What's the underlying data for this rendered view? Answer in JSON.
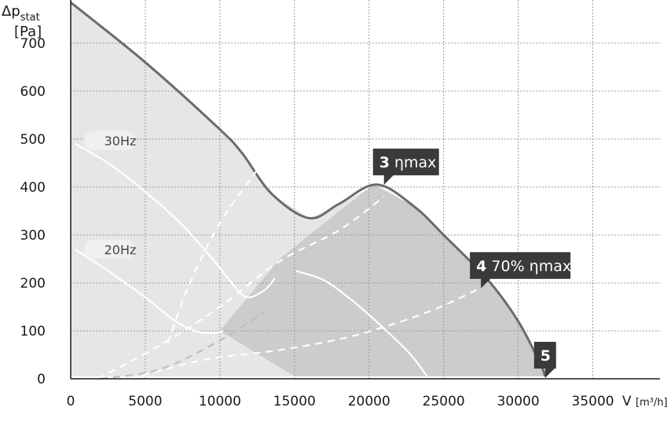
{
  "chart_data": {
    "type": "line",
    "y_axis": {
      "label_main": "Δp",
      "label_sub": "stat",
      "unit": "[Pa]",
      "ticks": [
        0,
        100,
        200,
        300,
        400,
        500,
        600,
        700
      ],
      "range": [
        0,
        790
      ]
    },
    "x_axis": {
      "label_main": "V",
      "label_unit": "[m³/h]",
      "ticks": [
        0,
        5000,
        10000,
        15000,
        20000,
        25000,
        30000,
        35000
      ],
      "range": [
        0,
        39500
      ]
    },
    "grid": true,
    "series": [
      {
        "role": "max_curve",
        "color": "#6b6b6b",
        "points": [
          [
            0,
            785
          ],
          [
            5000,
            660
          ],
          [
            10000,
            520
          ],
          [
            11500,
            470
          ],
          [
            13500,
            385
          ],
          [
            16000,
            335
          ],
          [
            18000,
            365
          ],
          [
            20500,
            405
          ],
          [
            23000,
            360
          ],
          [
            25000,
            300
          ],
          [
            28000,
            205
          ],
          [
            30000,
            120
          ],
          [
            31500,
            30
          ],
          [
            31800,
            5
          ]
        ]
      },
      {
        "name": "30Hz",
        "color": "#ffffff",
        "points": [
          [
            300,
            490
          ],
          [
            2500,
            450
          ],
          [
            5000,
            390
          ],
          [
            7500,
            320
          ],
          [
            9500,
            250
          ],
          [
            10800,
            200
          ],
          [
            11800,
            170
          ],
          [
            13000,
            185
          ],
          [
            13700,
            210
          ]
        ]
      },
      {
        "name": "20Hz",
        "color": "#ffffff",
        "points": [
          [
            300,
            270
          ],
          [
            2500,
            225
          ],
          [
            5000,
            170
          ],
          [
            6800,
            125
          ],
          [
            8300,
            100
          ],
          [
            9600,
            95
          ],
          [
            10200,
            100
          ]
        ]
      },
      {
        "role": "white_solid",
        "color": "#ffffff",
        "points": [
          [
            15100,
            225
          ],
          [
            17000,
            205
          ],
          [
            19000,
            160
          ],
          [
            21000,
            105
          ],
          [
            22800,
            50
          ],
          [
            24000,
            0
          ]
        ]
      },
      {
        "role": "dashed_steep_left",
        "color": "#ffffff",
        "points": [
          [
            6500,
            75
          ],
          [
            8000,
            200
          ],
          [
            10000,
            325
          ],
          [
            12500,
            435
          ]
        ]
      },
      {
        "role": "dashed_mid",
        "color": "#ffffff",
        "points": [
          [
            1800,
            0
          ],
          [
            6000,
            70
          ],
          [
            10000,
            150
          ],
          [
            14000,
            245
          ],
          [
            18000,
            310
          ],
          [
            21000,
            380
          ]
        ]
      },
      {
        "role": "dashed_low",
        "color": "#ffffff",
        "points": [
          [
            4000,
            0
          ],
          [
            9000,
            40
          ],
          [
            14000,
            60
          ],
          [
            19000,
            90
          ],
          [
            24000,
            140
          ],
          [
            27500,
            190
          ]
        ]
      },
      {
        "role": "dashed_floor",
        "color": "#bdbdbd",
        "points": [
          [
            2000,
            0
          ],
          [
            6000,
            20
          ],
          [
            10000,
            80
          ],
          [
            13000,
            140
          ]
        ]
      }
    ],
    "shaded_regions": [
      {
        "role": "operating_region",
        "color": "#e6e6e6",
        "points": [
          [
            0,
            785
          ],
          [
            5000,
            660
          ],
          [
            10000,
            520
          ],
          [
            11500,
            470
          ],
          [
            13500,
            385
          ],
          [
            16000,
            335
          ],
          [
            18000,
            365
          ],
          [
            20500,
            405
          ],
          [
            23000,
            360
          ],
          [
            25000,
            300
          ],
          [
            28000,
            205
          ],
          [
            30000,
            120
          ],
          [
            31500,
            30
          ],
          [
            31800,
            5
          ],
          [
            0,
            5
          ]
        ]
      },
      {
        "role": "efficient_region",
        "color": "#cccccc",
        "points": [
          [
            10000,
            100
          ],
          [
            14000,
            250
          ],
          [
            18000,
            350
          ],
          [
            20300,
            405
          ],
          [
            23000,
            360
          ],
          [
            25000,
            300
          ],
          [
            28000,
            205
          ],
          [
            30000,
            120
          ],
          [
            31500,
            30
          ],
          [
            31800,
            5
          ],
          [
            15000,
            5
          ],
          [
            10000,
            100
          ]
        ]
      }
    ],
    "annotations": [
      {
        "text": "30Hz",
        "x": 1400,
        "y": 497
      },
      {
        "text": "20Hz",
        "x": 1400,
        "y": 270
      },
      {
        "number": "3",
        "label": "ηmax",
        "x": 21000,
        "y": 408
      },
      {
        "number": "4",
        "label": "70% ηmax",
        "x": 27500,
        "y": 192
      },
      {
        "number": "5",
        "label": "",
        "x": 31800,
        "y": 5
      }
    ]
  }
}
